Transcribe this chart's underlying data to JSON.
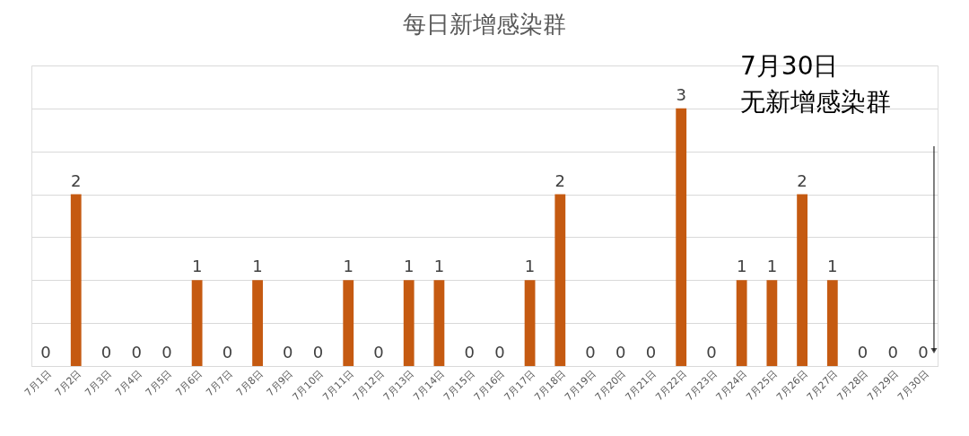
{
  "chart_data": {
    "type": "bar",
    "title": "每日新增感染群",
    "categories": [
      "7月1日",
      "7月2日",
      "7月3日",
      "7月4日",
      "7月5日",
      "7月6日",
      "7月7日",
      "7月8日",
      "7月9日",
      "7月10日",
      "7月11日",
      "7月12日",
      "7月13日",
      "7月14日",
      "7月15日",
      "7月16日",
      "7月17日",
      "7月18日",
      "7月19日",
      "7月20日",
      "7月21日",
      "7月22日",
      "7月23日",
      "7月24日",
      "7月25日",
      "7月26日",
      "7月27日",
      "7月28日",
      "7月29日",
      "7月30日"
    ],
    "values": [
      0,
      2,
      0,
      0,
      0,
      1,
      0,
      1,
      0,
      0,
      1,
      0,
      1,
      1,
      0,
      0,
      1,
      2,
      0,
      0,
      0,
      3,
      0,
      1,
      1,
      2,
      1,
      0,
      0,
      0
    ],
    "color": "#c55a11",
    "ylim": [
      0,
      3.5
    ],
    "yticks": [
      {
        "value": 0,
        "label": null
      },
      {
        "value": 0.5,
        "label": null
      },
      {
        "value": 1,
        "label": null
      },
      {
        "value": 1.5,
        "label": null
      },
      {
        "value": 2,
        "label": null
      },
      {
        "value": 2.5,
        "label": null
      },
      {
        "value": 3,
        "label": null
      },
      {
        "value": 3.5,
        "label": null
      }
    ],
    "tick_labels": "x",
    "grid": "y",
    "data_labels": true,
    "annotations": [
      "7月30日",
      "无新增感染群"
    ]
  }
}
